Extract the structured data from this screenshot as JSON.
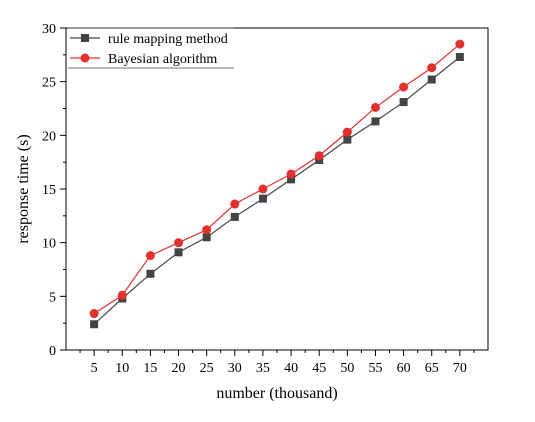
{
  "chart_data": {
    "type": "line",
    "xlabel": "number (thousand)",
    "ylabel": "response time (s)",
    "x": [
      5,
      10,
      15,
      20,
      25,
      30,
      35,
      40,
      45,
      50,
      55,
      60,
      65,
      70
    ],
    "x_ticks": [
      "5",
      "10",
      "15",
      "20",
      "25",
      "30",
      "35",
      "40",
      "45",
      "50",
      "55",
      "60",
      "65",
      "70"
    ],
    "ylim": [
      0,
      30
    ],
    "y_ticks": [
      "0",
      "5",
      "10",
      "15",
      "20",
      "25",
      "30"
    ],
    "grid": false,
    "legend_position": "top-left",
    "series": [
      {
        "name": "rule mapping method",
        "color": "#444444",
        "marker": "square",
        "values": [
          2.4,
          4.8,
          7.1,
          9.1,
          10.5,
          12.4,
          14.1,
          15.9,
          17.7,
          19.6,
          21.3,
          23.1,
          25.2,
          27.3
        ]
      },
      {
        "name": "Bayesian algorithm",
        "color": "#e03030",
        "marker": "circle",
        "values": [
          3.4,
          5.1,
          8.8,
          10.0,
          11.2,
          13.6,
          15.0,
          16.4,
          18.1,
          20.3,
          22.6,
          24.5,
          26.3,
          28.5
        ]
      }
    ]
  }
}
